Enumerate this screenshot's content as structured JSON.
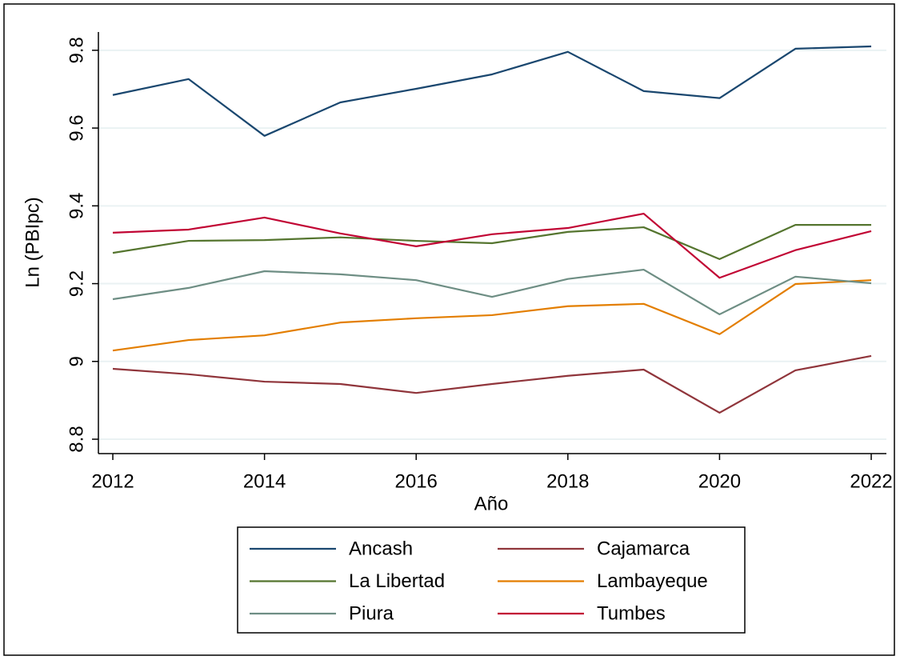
{
  "chart_data": {
    "type": "line",
    "x_label": "Año",
    "y_label": "Ln (PBIpc)",
    "x": [
      2012,
      2013,
      2014,
      2015,
      2016,
      2017,
      2018,
      2019,
      2020,
      2021,
      2022
    ],
    "series": [
      {
        "name": "Ancash",
        "color": "#1a476f",
        "values": [
          9.685,
          9.726,
          9.58,
          9.666,
          9.701,
          9.738,
          9.796,
          9.695,
          9.677,
          9.804,
          9.81
        ]
      },
      {
        "name": "Cajamarca",
        "color": "#90353b",
        "values": [
          8.981,
          8.967,
          8.948,
          8.942,
          8.919,
          8.942,
          8.963,
          8.979,
          8.868,
          8.977,
          9.014
        ]
      },
      {
        "name": "La Libertad",
        "color": "#55752f",
        "values": [
          9.279,
          9.31,
          9.312,
          9.319,
          9.31,
          9.304,
          9.333,
          9.345,
          9.263,
          9.351,
          9.351
        ]
      },
      {
        "name": "Lambayeque",
        "color": "#e37e00",
        "values": [
          9.028,
          9.055,
          9.067,
          9.1,
          9.111,
          9.119,
          9.142,
          9.148,
          9.07,
          9.199,
          9.209
        ]
      },
      {
        "name": "Piura",
        "color": "#6e8e84",
        "values": [
          9.16,
          9.189,
          9.232,
          9.224,
          9.209,
          9.166,
          9.212,
          9.236,
          9.121,
          9.218,
          9.201
        ]
      },
      {
        "name": "Tumbes",
        "color": "#c10534",
        "values": [
          9.331,
          9.339,
          9.37,
          9.329,
          9.296,
          9.327,
          9.343,
          9.38,
          9.215,
          9.286,
          9.335
        ]
      }
    ],
    "xlim": [
      2011.81,
      2022.2
    ],
    "ylim": [
      8.763,
      9.847
    ],
    "xticks": [
      2012,
      2014,
      2016,
      2018,
      2020,
      2022
    ],
    "yticks": [
      8.8,
      9,
      9.2,
      9.4,
      9.6,
      9.8
    ],
    "grid": true,
    "legend_position": "bottom"
  }
}
